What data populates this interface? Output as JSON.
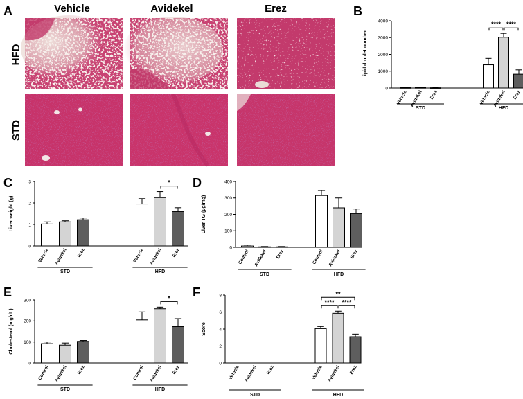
{
  "micrographs": {
    "panel_label": "A",
    "columns": [
      "Vehicle",
      "Avidekel",
      "Erez"
    ],
    "rows": [
      "HFD",
      "STD"
    ],
    "colors": {
      "tissue_pink": "#c83c6e",
      "tissue_dark": "#b0285a",
      "vacuole": "#e8d8d0"
    }
  },
  "chart_data": [
    {
      "panel": "B",
      "type": "bar",
      "ylabel": "Lipid droplet number",
      "ylim": [
        0,
        4000
      ],
      "yticks": [
        0,
        1000,
        2000,
        3000,
        4000
      ],
      "groups": [
        {
          "name": "STD",
          "categories": [
            "Vehicle",
            "Avidekel",
            "Erez"
          ],
          "values": [
            20,
            25,
            15
          ],
          "errors": [
            15,
            15,
            10
          ]
        },
        {
          "name": "HFD",
          "categories": [
            "Vehicle",
            "Avidekel",
            "Erez"
          ],
          "values": [
            1380,
            3020,
            820
          ],
          "errors": [
            380,
            230,
            260
          ]
        }
      ],
      "significance": [
        {
          "group": "HFD",
          "from": 0,
          "to": 1,
          "label": "****"
        },
        {
          "group": "HFD",
          "from": 1,
          "to": 2,
          "label": "****"
        }
      ]
    },
    {
      "panel": "C",
      "type": "bar",
      "ylabel": "Liver weight (g)",
      "ylim": [
        0,
        3
      ],
      "yticks": [
        0,
        1,
        2,
        3
      ],
      "groups": [
        {
          "name": "STD",
          "categories": [
            "Vehicle",
            "Avidekel",
            "Erez"
          ],
          "values": [
            1.02,
            1.12,
            1.22
          ],
          "errors": [
            0.1,
            0.05,
            0.08
          ]
        },
        {
          "name": "HFD",
          "categories": [
            "Vehicle",
            "Avidekel",
            "Erez"
          ],
          "values": [
            1.95,
            2.25,
            1.6
          ],
          "errors": [
            0.25,
            0.28,
            0.18
          ]
        }
      ],
      "significance": [
        {
          "group": "HFD",
          "from": 1,
          "to": 2,
          "label": "*"
        }
      ]
    },
    {
      "panel": "D",
      "type": "bar",
      "ylabel": "Liver TG (µg/mg)",
      "ylim": [
        0,
        400
      ],
      "yticks": [
        0,
        100,
        200,
        300,
        400
      ],
      "groups": [
        {
          "name": "STD",
          "categories": [
            "Control",
            "Avidekel",
            "Erez"
          ],
          "values": [
            8,
            3,
            3
          ],
          "errors": [
            6,
            2,
            2
          ]
        },
        {
          "name": "HFD",
          "categories": [
            "Control",
            "Avidekel",
            "Erez"
          ],
          "values": [
            315,
            240,
            205
          ],
          "errors": [
            30,
            60,
            28
          ]
        }
      ],
      "significance": []
    },
    {
      "panel": "E",
      "type": "bar",
      "ylabel": "Cholesterol (mg/dL)",
      "ylim": [
        0,
        300
      ],
      "yticks": [
        0,
        100,
        200,
        300
      ],
      "groups": [
        {
          "name": "STD",
          "categories": [
            "Control",
            "Avidekel",
            "Erez"
          ],
          "values": [
            92,
            85,
            103
          ],
          "errors": [
            8,
            10,
            4
          ]
        },
        {
          "name": "HFD",
          "categories": [
            "Control",
            "Avidekel",
            "Erez"
          ],
          "values": [
            205,
            258,
            173
          ],
          "errors": [
            38,
            8,
            38
          ]
        }
      ],
      "significance": [
        {
          "group": "HFD",
          "from": 1,
          "to": 2,
          "label": "*"
        }
      ]
    },
    {
      "panel": "F",
      "type": "bar",
      "ylabel": "Score",
      "ylim": [
        0,
        8
      ],
      "yticks": [
        0,
        2,
        4,
        6,
        8
      ],
      "groups": [
        {
          "name": "STD",
          "categories": [
            "Vehicle",
            "Avidekel",
            "Erez"
          ],
          "values": [
            0,
            0,
            0
          ],
          "errors": [
            0,
            0,
            0
          ]
        },
        {
          "name": "HFD",
          "categories": [
            "Vehicle",
            "Avidekel",
            "Erez"
          ],
          "values": [
            4.05,
            5.85,
            3.1
          ],
          "errors": [
            0.25,
            0.25,
            0.3
          ]
        }
      ],
      "significance": [
        {
          "group": "HFD",
          "from": 0,
          "to": 1,
          "label": "****"
        },
        {
          "group": "HFD",
          "from": 1,
          "to": 2,
          "label": "****"
        },
        {
          "group": "HFD",
          "from": 0,
          "to": 2,
          "label": "**"
        }
      ]
    }
  ],
  "colors": {
    "vehicle_fill": "#ffffff",
    "avidekel_fill": "#d4d4d4",
    "erez_fill": "#5e5e5e",
    "axis": "#000000"
  }
}
